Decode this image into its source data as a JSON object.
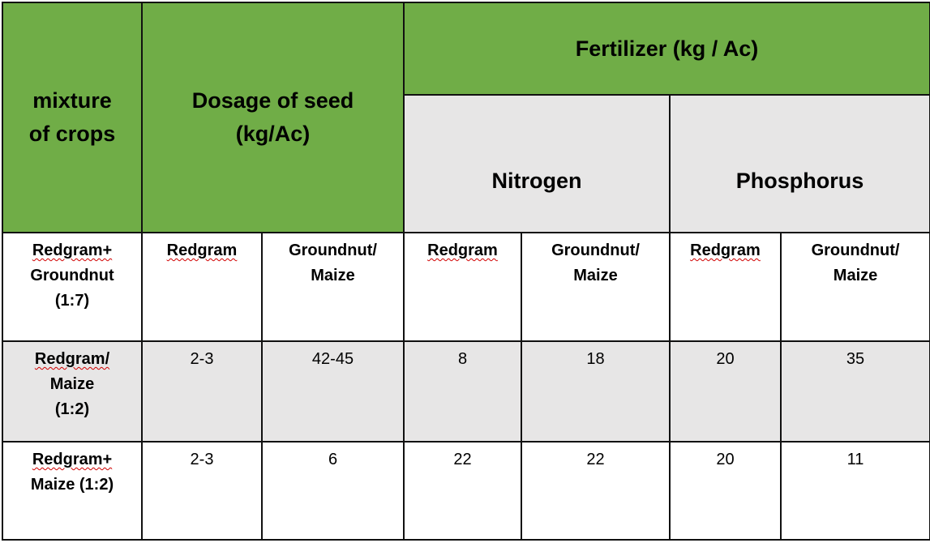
{
  "header": {
    "mixture_line1": "mixture",
    "mixture_line2": "of crops",
    "dosage_line1": "Dosage of seed",
    "dosage_line2": "(kg/Ac)",
    "fertilizer": "Fertilizer (kg / Ac)",
    "nitrogen": "Nitrogen",
    "phosphorus": "Phosphorus"
  },
  "subheader": {
    "crop_line1": "Redgram+",
    "crop_line2": "Groundnut",
    "crop_line3": "(1:7)",
    "redgram": "Redgram",
    "groundnut_line1": "Groundnut/",
    "groundnut_line2": "Maize"
  },
  "rows": [
    {
      "crop_line1": "Redgram/",
      "crop_line2": "Maize",
      "crop_line3": "(1:2)",
      "seed_redgram": "2-3",
      "seed_groundnut_maize": "42-45",
      "n_redgram": "8",
      "n_groundnut_maize": "18",
      "p_redgram": "20",
      "p_groundnut_maize": "35"
    },
    {
      "crop_line1": "Redgram+",
      "crop_line2": "Maize (1:2)",
      "seed_redgram": "2-3",
      "seed_groundnut_maize": "6",
      "n_redgram": "22",
      "n_groundnut_maize": "22",
      "p_redgram": "20",
      "p_groundnut_maize": "11"
    }
  ],
  "colors": {
    "header_green": "#70ad47",
    "header_gray": "#e7e6e6",
    "row_gray": "#e7e6e6",
    "border": "#111111",
    "spellcheck_underline": "#d00000"
  }
}
